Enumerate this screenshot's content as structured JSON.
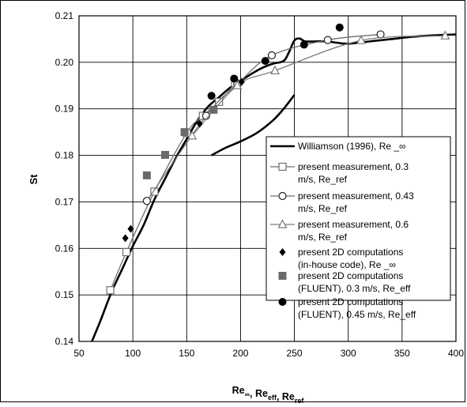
{
  "chart_data": {
    "type": "scatter",
    "title": "",
    "xlabel": {
      "parts": [
        {
          "base": "Re",
          "sub": "∞"
        },
        {
          "base": ", Re",
          "sub": "eff"
        },
        {
          "base": ", Re",
          "sub": "ref"
        }
      ]
    },
    "ylabel": "St",
    "xlim": [
      50,
      400
    ],
    "ylim": [
      0.14,
      0.21
    ],
    "xticks": [
      50,
      100,
      150,
      200,
      250,
      300,
      350,
      400
    ],
    "xtick_labels": [
      "50",
      "100",
      "150",
      "200",
      "250",
      "300",
      "350",
      "400"
    ],
    "yticks": [
      0.14,
      0.15,
      0.16,
      0.17,
      0.18,
      0.19,
      0.2,
      0.21
    ],
    "ytick_labels": [
      "0.14",
      "0.15",
      "0.16",
      "0.17",
      "0.18",
      "0.19",
      "0.20",
      "0.21"
    ],
    "grid": true,
    "legend_position": "lower-right",
    "series": [
      {
        "key": "williamson",
        "legend": [
          "Williamson (1996), Re _∞"
        ],
        "style": "line",
        "color": "#000000",
        "width": 2.6,
        "segments": [
          {
            "x": [
              62,
              70,
              80,
              90,
              100,
              110,
              120,
              130,
              140,
              150,
              160,
              170,
              180,
              190,
              200,
              210,
              220,
              230,
              240,
              245,
              250,
              255,
              260,
              270,
              280,
              290,
              300,
              320,
              340,
              360,
              380,
              400
            ],
            "y": [
              0.14,
              0.1445,
              0.1505,
              0.1555,
              0.1605,
              0.165,
              0.1705,
              0.175,
              0.1795,
              0.1835,
              0.1875,
              0.1905,
              0.1925,
              0.1945,
              0.196,
              0.1975,
              0.1988,
              0.1997,
              0.2003,
              0.2022,
              0.2047,
              0.2051,
              0.2045,
              0.2045,
              0.2045,
              0.2042,
              0.204,
              0.2045,
              0.205,
              0.2055,
              0.2058,
              0.206
            ]
          },
          {
            "x": [
              173,
              185,
              200,
              215,
              230,
              240,
              250
            ],
            "y": [
              0.18,
              0.1815,
              0.183,
              0.1848,
              0.1875,
              0.19,
              0.193
            ]
          }
        ]
      },
      {
        "key": "meas03",
        "legend": [
          "present measurement, 0.3",
          "m/s, Re_ref"
        ],
        "style": "line-marker",
        "marker": "square-open",
        "color": "#6e6e6e",
        "width": 1.3,
        "x": [
          79,
          94,
          120,
          150,
          165,
          180,
          195
        ],
        "y": [
          0.151,
          0.1592,
          0.1722,
          0.1848,
          0.1885,
          0.1915,
          0.1955
        ]
      },
      {
        "key": "meas043",
        "legend": [
          "present measurement, 0.43",
          "m/s, Re_ref"
        ],
        "style": "line-marker",
        "marker": "circle-open",
        "color": "#6e6e6e",
        "width": 1.3,
        "x": [
          113,
          168,
          197,
          229,
          281,
          330
        ],
        "y": [
          0.1702,
          0.1885,
          0.1953,
          0.2015,
          0.2048,
          0.206
        ]
      },
      {
        "key": "meas06",
        "legend": [
          "present measurement, 0.6",
          "m/s, Re_ref"
        ],
        "style": "line-marker",
        "marker": "triangle-open",
        "color": "#7a7a7a",
        "width": 1.3,
        "x": [
          155,
          197,
          232,
          312,
          390
        ],
        "y": [
          0.1842,
          0.195,
          0.1982,
          0.2047,
          0.2057
        ]
      },
      {
        "key": "comp_inhouse",
        "legend": [
          "present 2D computations",
          "(in-house code), Re _∞"
        ],
        "style": "marker",
        "marker": "diamond",
        "color": "#000000",
        "x": [
          93,
          98,
          162,
          201
        ],
        "y": [
          0.1622,
          0.1642,
          0.1868,
          0.1958
        ]
      },
      {
        "key": "comp_fluent03",
        "legend": [
          "present 2D computations",
          "(FLUENT), 0.3 m/s, Re_eff"
        ],
        "style": "marker",
        "marker": "square",
        "color": "#6a6a6a",
        "x": [
          113,
          130,
          148,
          175
        ],
        "y": [
          0.1757,
          0.1801,
          0.185,
          0.1898
        ]
      },
      {
        "key": "comp_fluent045",
        "legend": [
          "present 2D computations",
          "(FLUENT), 0.45 m/s, Re_eff"
        ],
        "style": "marker",
        "marker": "circle",
        "color": "#000000",
        "x": [
          173,
          194,
          223,
          259,
          292
        ],
        "y": [
          0.1928,
          0.1965,
          0.2003,
          0.2038,
          0.2075
        ]
      }
    ]
  }
}
